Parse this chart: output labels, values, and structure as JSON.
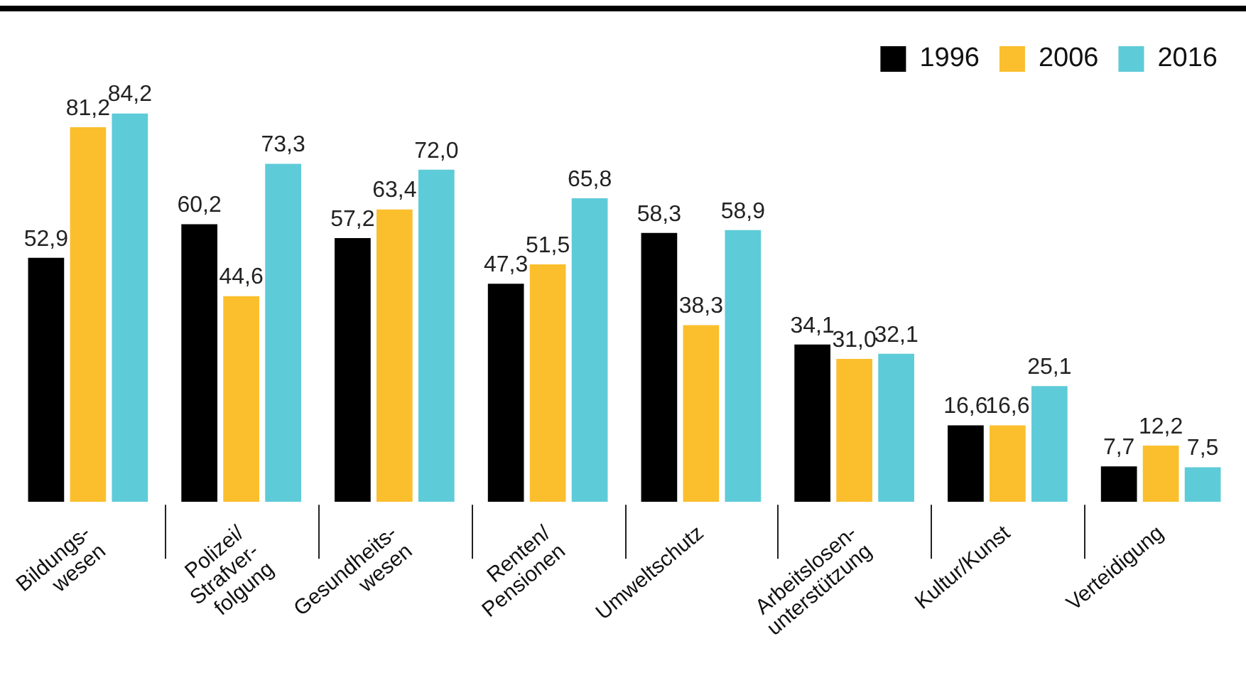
{
  "chart_data": {
    "type": "bar",
    "categories": [
      "Bildungs-\nwesen",
      "Polizei/\nStrafver-\nfolgung",
      "Gesundheits-\nwesen",
      "Renten/\nPensionen",
      "Umweltschutz",
      "Arbeitslosen-\nunterstützung",
      "Kultur/Kunst",
      "Verteidigung"
    ],
    "series": [
      {
        "name": "1996",
        "color": "#000000",
        "values": [
          52.9,
          60.2,
          57.2,
          47.3,
          58.3,
          34.1,
          16.6,
          7.7
        ],
        "value_labels": [
          "52,9",
          "60,2",
          "57,2",
          "47,3",
          "58,3",
          "34,1",
          "16,6",
          "7,7"
        ]
      },
      {
        "name": "2006",
        "color": "#fbbf2d",
        "values": [
          81.2,
          44.6,
          63.4,
          51.5,
          38.3,
          31.0,
          16.6,
          12.2
        ],
        "value_labels": [
          "81,2",
          "44,6",
          "63,4",
          "51,5",
          "38,3",
          "31,0",
          "16,6",
          "12,2"
        ]
      },
      {
        "name": "2016",
        "color": "#5ecbd8",
        "values": [
          84.2,
          73.3,
          72.0,
          65.8,
          58.9,
          32.1,
          25.1,
          7.5
        ],
        "value_labels": [
          "84,2",
          "73,3",
          "72,0",
          "65,8",
          "58,9",
          "32,1",
          "25,1",
          "7,5"
        ]
      }
    ],
    "legend": "top right"
  }
}
